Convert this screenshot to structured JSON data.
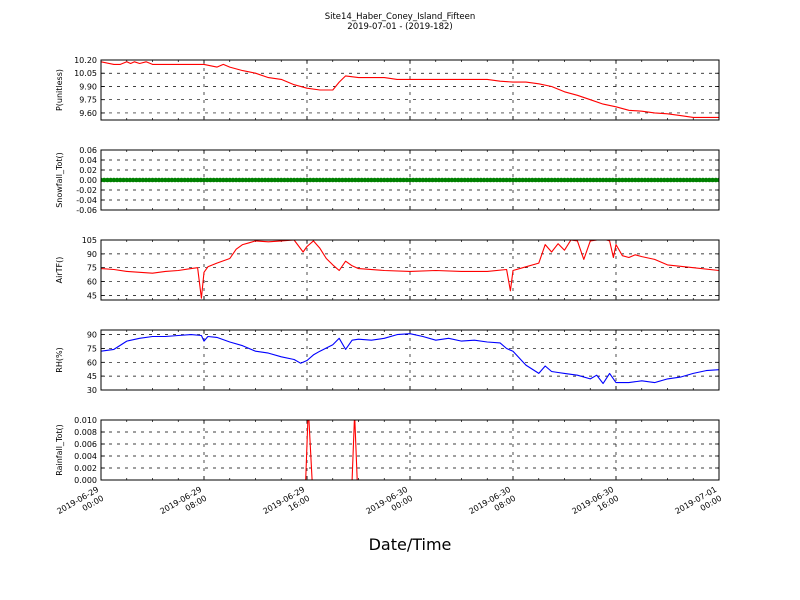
{
  "figure": {
    "title": "Site14_Haber_Coney_Island_Fifteen",
    "subtitle": "2019-07-01 - (2019-182)",
    "xlabel": "Date/Time"
  },
  "x_axis": {
    "start": "2019-06-29 00:00",
    "end": "2019-07-01 00:00",
    "tick_labels": [
      [
        "2019-06-29",
        "00:00"
      ],
      [
        "2019-06-29",
        "08:00"
      ],
      [
        "2019-06-29",
        "16:00"
      ],
      [
        "2019-06-30",
        "00:00"
      ],
      [
        "2019-06-30",
        "08:00"
      ],
      [
        "2019-06-30",
        "16:00"
      ],
      [
        "2019-07-01",
        "00:00"
      ]
    ]
  },
  "colors": {
    "red": "#ff0000",
    "green": "#008000",
    "blue": "#0000ff",
    "grid": "#000000"
  },
  "chart_data": [
    {
      "type": "line",
      "ylabel": "P(unitless)",
      "ylim": [
        9.52,
        10.2
      ],
      "yticks": [
        "10.20",
        "10.05",
        "9.90",
        "9.75",
        "9.60"
      ],
      "ytick_values": [
        10.2,
        10.05,
        9.9,
        9.75,
        9.6
      ],
      "grid": true,
      "series": [
        {
          "color": "#ff0000",
          "x_hours": [
            0,
            1,
            1.5,
            2,
            2.3,
            2.6,
            3,
            3.5,
            4,
            5,
            6,
            8,
            9,
            9.5,
            10,
            11,
            12,
            13,
            14,
            15,
            16,
            17,
            18,
            18.5,
            19,
            20,
            21,
            22,
            23,
            24,
            25,
            26,
            28,
            29,
            30,
            31,
            32,
            33,
            34,
            35,
            36,
            37,
            38,
            39,
            40,
            41,
            42,
            43,
            44,
            45,
            46,
            47,
            48
          ],
          "values": [
            10.18,
            10.15,
            10.15,
            10.18,
            10.16,
            10.18,
            10.16,
            10.18,
            10.15,
            10.15,
            10.15,
            10.15,
            10.12,
            10.15,
            10.12,
            10.08,
            10.05,
            10.0,
            9.98,
            9.92,
            9.88,
            9.86,
            9.86,
            9.95,
            10.02,
            10.0,
            10.0,
            10.0,
            9.98,
            9.98,
            9.98,
            9.98,
            9.98,
            9.98,
            9.98,
            9.96,
            9.95,
            9.95,
            9.93,
            9.9,
            9.84,
            9.8,
            9.75,
            9.7,
            9.67,
            9.63,
            9.62,
            9.6,
            9.59,
            9.57,
            9.55,
            9.55,
            9.55
          ]
        }
      ]
    },
    {
      "type": "line",
      "ylabel": "Snowfall_Tot()",
      "ylim": [
        -0.06,
        0.06
      ],
      "yticks": [
        "0.06",
        "0.04",
        "0.02",
        "0.00",
        "-0.02",
        "-0.04",
        "-0.06"
      ],
      "ytick_values": [
        0.06,
        0.04,
        0.02,
        0.0,
        -0.02,
        -0.04,
        -0.06
      ],
      "grid": true,
      "series": [
        {
          "color": "#008000",
          "marker": "circle",
          "x_hours": [
            0,
            48
          ],
          "values": [
            0,
            0
          ]
        }
      ]
    },
    {
      "type": "line",
      "ylabel": "AirTF()",
      "ylim": [
        40,
        105
      ],
      "yticks": [
        "105",
        "90",
        "75",
        "60",
        "45"
      ],
      "ytick_values": [
        105,
        90,
        75,
        60,
        45
      ],
      "grid": true,
      "series": [
        {
          "color": "#ff0000",
          "x_hours": [
            0,
            1,
            2,
            3,
            4,
            5,
            6,
            7,
            7.5,
            7.8,
            8,
            8.3,
            9,
            10,
            10.5,
            11,
            11.5,
            12,
            13,
            14,
            15,
            15.7,
            16,
            16.5,
            17,
            17.5,
            18,
            18.5,
            19,
            19.5,
            20,
            22,
            24,
            26,
            28,
            30,
            31.5,
            31.8,
            32,
            33,
            34,
            34.5,
            35,
            35.5,
            36,
            36.5,
            37,
            37.5,
            38,
            39,
            39.5,
            39.8,
            40,
            40.5,
            41,
            41.5,
            42,
            43,
            44,
            46,
            48
          ],
          "values": [
            74,
            73,
            71,
            70,
            69,
            71,
            72,
            74,
            75,
            42,
            70,
            76,
            80,
            85,
            95,
            100,
            102,
            104,
            103,
            104,
            105,
            92,
            98,
            104,
            96,
            85,
            78,
            72,
            82,
            77,
            74,
            72,
            71,
            72,
            71,
            71,
            73,
            50,
            72,
            76,
            80,
            100,
            92,
            101,
            94,
            105,
            104,
            84,
            104,
            106,
            104,
            86,
            100,
            88,
            86,
            89,
            87,
            84,
            78,
            75,
            72
          ]
        }
      ]
    },
    {
      "type": "line",
      "ylabel": "RH(%)",
      "ylim": [
        30,
        95
      ],
      "yticks": [
        "90",
        "75",
        "60",
        "45",
        "30"
      ],
      "ytick_values": [
        90,
        75,
        60,
        45,
        30
      ],
      "grid": true,
      "series": [
        {
          "color": "#0000ff",
          "x_hours": [
            0,
            1,
            2,
            3,
            4,
            5,
            6,
            7,
            7.8,
            8,
            8.3,
            9,
            10,
            11,
            12,
            13,
            14,
            15,
            15.5,
            16,
            16.5,
            17,
            18,
            18.5,
            19,
            19.5,
            20,
            21,
            22,
            23,
            24,
            25,
            26,
            27,
            28,
            29,
            30,
            31,
            31.5,
            32,
            33,
            34,
            34.5,
            35,
            35.5,
            36,
            37,
            38,
            38.5,
            39,
            39.5,
            40,
            41,
            42,
            43,
            44,
            45,
            46,
            47,
            48
          ],
          "values": [
            72,
            74,
            83,
            86,
            88,
            88,
            89,
            90,
            89,
            83,
            88,
            87,
            82,
            78,
            72,
            70,
            66,
            63,
            59,
            62,
            68,
            72,
            79,
            86,
            74,
            84,
            85,
            84,
            86,
            90,
            91,
            88,
            84,
            86,
            83,
            84,
            82,
            81,
            75,
            72,
            57,
            48,
            56,
            50,
            49,
            48,
            46,
            42,
            46,
            37,
            48,
            38,
            38,
            40,
            38,
            42,
            44,
            48,
            51,
            52
          ]
        }
      ]
    },
    {
      "type": "line",
      "ylabel": "Rainfall_Tot()",
      "ylim": [
        0,
        0.01
      ],
      "yticks": [
        "0.010",
        "0.008",
        "0.006",
        "0.004",
        "0.002",
        "0.000"
      ],
      "ytick_values": [
        0.01,
        0.008,
        0.006,
        0.004,
        0.002,
        0.0
      ],
      "grid": true,
      "series": [
        {
          "color": "#ff0000",
          "x_hours": [
            0,
            15.9,
            16.1,
            16.4,
            19.5,
            19.7,
            19.9,
            48
          ],
          "values": [
            0,
            0,
            0.012,
            0,
            0,
            0.011,
            0,
            0
          ]
        }
      ]
    }
  ]
}
